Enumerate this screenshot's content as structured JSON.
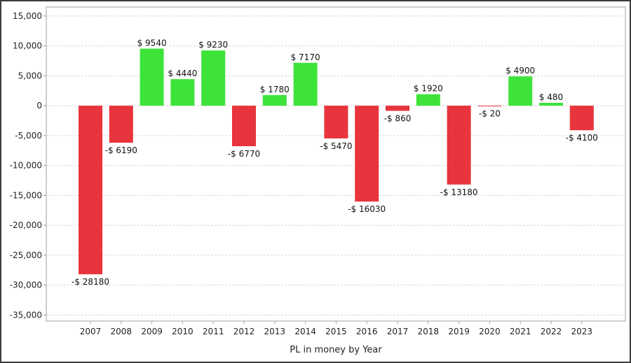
{
  "chart_data": {
    "type": "bar",
    "title": "",
    "xlabel": "PL in money by Year",
    "ylabel": "",
    "categories": [
      "2007",
      "2008",
      "2009",
      "2010",
      "2011",
      "2012",
      "2013",
      "2014",
      "2015",
      "2016",
      "2017",
      "2018",
      "2019",
      "2020",
      "2021",
      "2022",
      "2023"
    ],
    "values": [
      -28180,
      -6190,
      9540,
      4440,
      9230,
      -6770,
      1780,
      7170,
      -5470,
      -16030,
      -860,
      1920,
      -13180,
      -20,
      4900,
      480,
      -4100
    ],
    "value_labels": [
      "-$ 28180",
      "-$ 6190",
      "$ 9540",
      "$ 4440",
      "$ 9230",
      "-$ 6770",
      "$ 1780",
      "$ 7170",
      "-$ 5470",
      "-$ 16030",
      "-$ 860",
      "$ 1920",
      "-$ 13180",
      "-$ 20",
      "$ 4900",
      "$ 480",
      "-$ 4100"
    ],
    "ylim": [
      -36000,
      16500
    ],
    "yticks": [
      15000,
      10000,
      5000,
      0,
      -5000,
      -10000,
      -15000,
      -20000,
      -25000,
      -30000,
      -35000
    ],
    "ytick_labels": [
      "15,000",
      "10,000",
      "5,000",
      "0",
      "-5,000",
      "-10,000",
      "-15,000",
      "-20,000",
      "-25,000",
      "-30,000",
      "-35,000"
    ],
    "grid": true,
    "legend": "none",
    "colors": {
      "positive": "#3ee33a",
      "negative": "#e8343c",
      "grid": "#d8d8d8",
      "axis": "#a0a0a0"
    }
  }
}
